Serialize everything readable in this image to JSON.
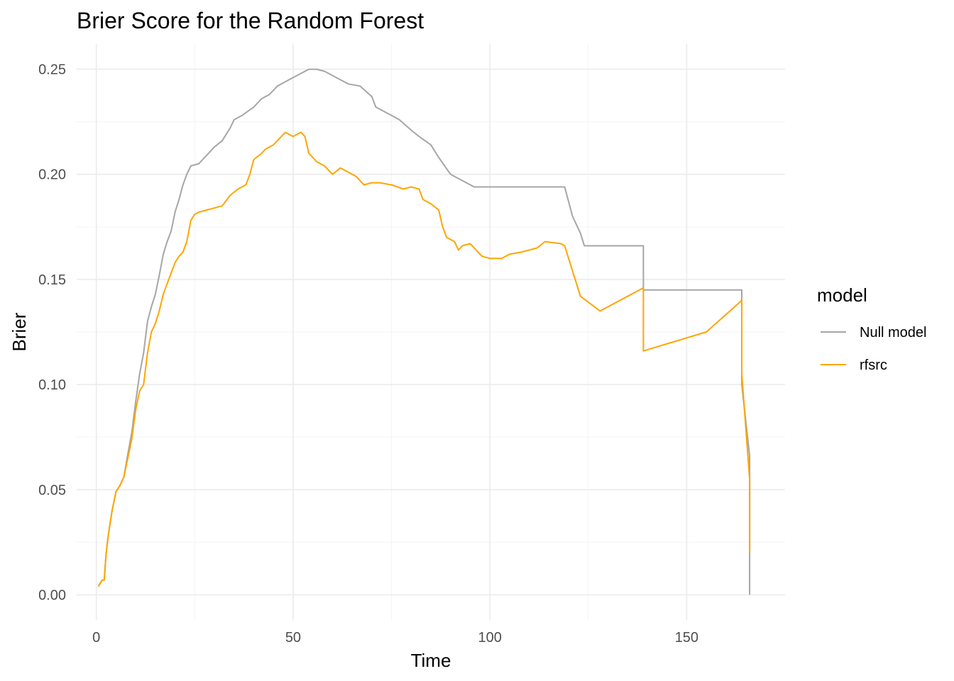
{
  "chart_data": {
    "type": "line",
    "title": "Brier Score for the Random Forest",
    "xlabel": "Time",
    "ylabel": "Brier",
    "xlim": [
      -5,
      175
    ],
    "ylim": [
      -0.012,
      0.262
    ],
    "x_ticks": [
      0,
      50,
      100,
      150
    ],
    "x_tick_labels": [
      "0",
      "50",
      "100",
      "150"
    ],
    "x_minor_ticks": [
      25,
      75,
      125
    ],
    "y_ticks": [
      0.0,
      0.05,
      0.1,
      0.15,
      0.2,
      0.25
    ],
    "y_tick_labels": [
      "0.00",
      "0.05",
      "0.10",
      "0.15",
      "0.20",
      "0.25"
    ],
    "y_minor_ticks": [
      0.025,
      0.075,
      0.125,
      0.175,
      0.225
    ],
    "grid": true,
    "legend": {
      "title": "model",
      "placement": "right"
    },
    "series": [
      {
        "name": "Null model",
        "color": "#a6a6a6",
        "points": [
          [
            0.5,
            0.004
          ],
          [
            1.5,
            0.007
          ],
          [
            2,
            0.007
          ],
          [
            2.5,
            0.02
          ],
          [
            3,
            0.028
          ],
          [
            4,
            0.04
          ],
          [
            5,
            0.049
          ],
          [
            6,
            0.052
          ],
          [
            7,
            0.056
          ],
          [
            8,
            0.067
          ],
          [
            9,
            0.077
          ],
          [
            10,
            0.092
          ],
          [
            11,
            0.105
          ],
          [
            12,
            0.115
          ],
          [
            13,
            0.13
          ],
          [
            14,
            0.137
          ],
          [
            15,
            0.143
          ],
          [
            16,
            0.152
          ],
          [
            17,
            0.162
          ],
          [
            18,
            0.168
          ],
          [
            19,
            0.173
          ],
          [
            20,
            0.182
          ],
          [
            21,
            0.188
          ],
          [
            22,
            0.195
          ],
          [
            23,
            0.2
          ],
          [
            24,
            0.204
          ],
          [
            26,
            0.205
          ],
          [
            27,
            0.207
          ],
          [
            28,
            0.209
          ],
          [
            30,
            0.213
          ],
          [
            32,
            0.216
          ],
          [
            34,
            0.222
          ],
          [
            35,
            0.226
          ],
          [
            37,
            0.228
          ],
          [
            40,
            0.232
          ],
          [
            42,
            0.236
          ],
          [
            44,
            0.238
          ],
          [
            46,
            0.242
          ],
          [
            48,
            0.244
          ],
          [
            50,
            0.246
          ],
          [
            52,
            0.248
          ],
          [
            54,
            0.25
          ],
          [
            56,
            0.25
          ],
          [
            58,
            0.249
          ],
          [
            60,
            0.247
          ],
          [
            62,
            0.245
          ],
          [
            64,
            0.243
          ],
          [
            67,
            0.242
          ],
          [
            70,
            0.237
          ],
          [
            71,
            0.232
          ],
          [
            74,
            0.229
          ],
          [
            77,
            0.226
          ],
          [
            80,
            0.221
          ],
          [
            82,
            0.218
          ],
          [
            85,
            0.214
          ],
          [
            87,
            0.208
          ],
          [
            90,
            0.2
          ],
          [
            93,
            0.197
          ],
          [
            96,
            0.194
          ],
          [
            100,
            0.194
          ],
          [
            110,
            0.194
          ],
          [
            119,
            0.194
          ],
          [
            121,
            0.18
          ],
          [
            123,
            0.172
          ],
          [
            124,
            0.166
          ],
          [
            139,
            0.166
          ],
          [
            139,
            0.145
          ],
          [
            164,
            0.145
          ],
          [
            164,
            0.1
          ],
          [
            166,
            0.066
          ],
          [
            166,
            0.0
          ]
        ]
      },
      {
        "name": "rfsrc",
        "color": "#ffa500",
        "points": [
          [
            0.5,
            0.004
          ],
          [
            1.5,
            0.007
          ],
          [
            2,
            0.007
          ],
          [
            2.5,
            0.02
          ],
          [
            3,
            0.028
          ],
          [
            4,
            0.04
          ],
          [
            5,
            0.049
          ],
          [
            6,
            0.052
          ],
          [
            7,
            0.056
          ],
          [
            8,
            0.065
          ],
          [
            9,
            0.074
          ],
          [
            10,
            0.088
          ],
          [
            11,
            0.097
          ],
          [
            12,
            0.1
          ],
          [
            13,
            0.115
          ],
          [
            14,
            0.125
          ],
          [
            15,
            0.129
          ],
          [
            16,
            0.135
          ],
          [
            17,
            0.143
          ],
          [
            18,
            0.148
          ],
          [
            19,
            0.153
          ],
          [
            20,
            0.158
          ],
          [
            21,
            0.161
          ],
          [
            22,
            0.163
          ],
          [
            23,
            0.168
          ],
          [
            24,
            0.178
          ],
          [
            25,
            0.181
          ],
          [
            26,
            0.182
          ],
          [
            28,
            0.183
          ],
          [
            30,
            0.184
          ],
          [
            32,
            0.185
          ],
          [
            34,
            0.19
          ],
          [
            36,
            0.193
          ],
          [
            38,
            0.195
          ],
          [
            39,
            0.2
          ],
          [
            40,
            0.207
          ],
          [
            42,
            0.21
          ],
          [
            43,
            0.212
          ],
          [
            45,
            0.214
          ],
          [
            46,
            0.216
          ],
          [
            48,
            0.22
          ],
          [
            50,
            0.218
          ],
          [
            52,
            0.22
          ],
          [
            53,
            0.218
          ],
          [
            54,
            0.21
          ],
          [
            56,
            0.206
          ],
          [
            58,
            0.204
          ],
          [
            60,
            0.2
          ],
          [
            62,
            0.203
          ],
          [
            64,
            0.201
          ],
          [
            66,
            0.199
          ],
          [
            68,
            0.195
          ],
          [
            70,
            0.196
          ],
          [
            72,
            0.196
          ],
          [
            75,
            0.195
          ],
          [
            78,
            0.193
          ],
          [
            80,
            0.194
          ],
          [
            82,
            0.193
          ],
          [
            83,
            0.188
          ],
          [
            85,
            0.186
          ],
          [
            87,
            0.183
          ],
          [
            88,
            0.175
          ],
          [
            89,
            0.17
          ],
          [
            91,
            0.168
          ],
          [
            92,
            0.164
          ],
          [
            93,
            0.166
          ],
          [
            95,
            0.167
          ],
          [
            97,
            0.163
          ],
          [
            98,
            0.161
          ],
          [
            100,
            0.16
          ],
          [
            103,
            0.16
          ],
          [
            105,
            0.162
          ],
          [
            108,
            0.163
          ],
          [
            112,
            0.165
          ],
          [
            114,
            0.168
          ],
          [
            118,
            0.167
          ],
          [
            119,
            0.166
          ],
          [
            123,
            0.142
          ],
          [
            128,
            0.135
          ],
          [
            139,
            0.146
          ],
          [
            139,
            0.116
          ],
          [
            155,
            0.125
          ],
          [
            164,
            0.14
          ],
          [
            164,
            0.105
          ],
          [
            166,
            0.055
          ],
          [
            166,
            0.02
          ]
        ]
      }
    ]
  }
}
